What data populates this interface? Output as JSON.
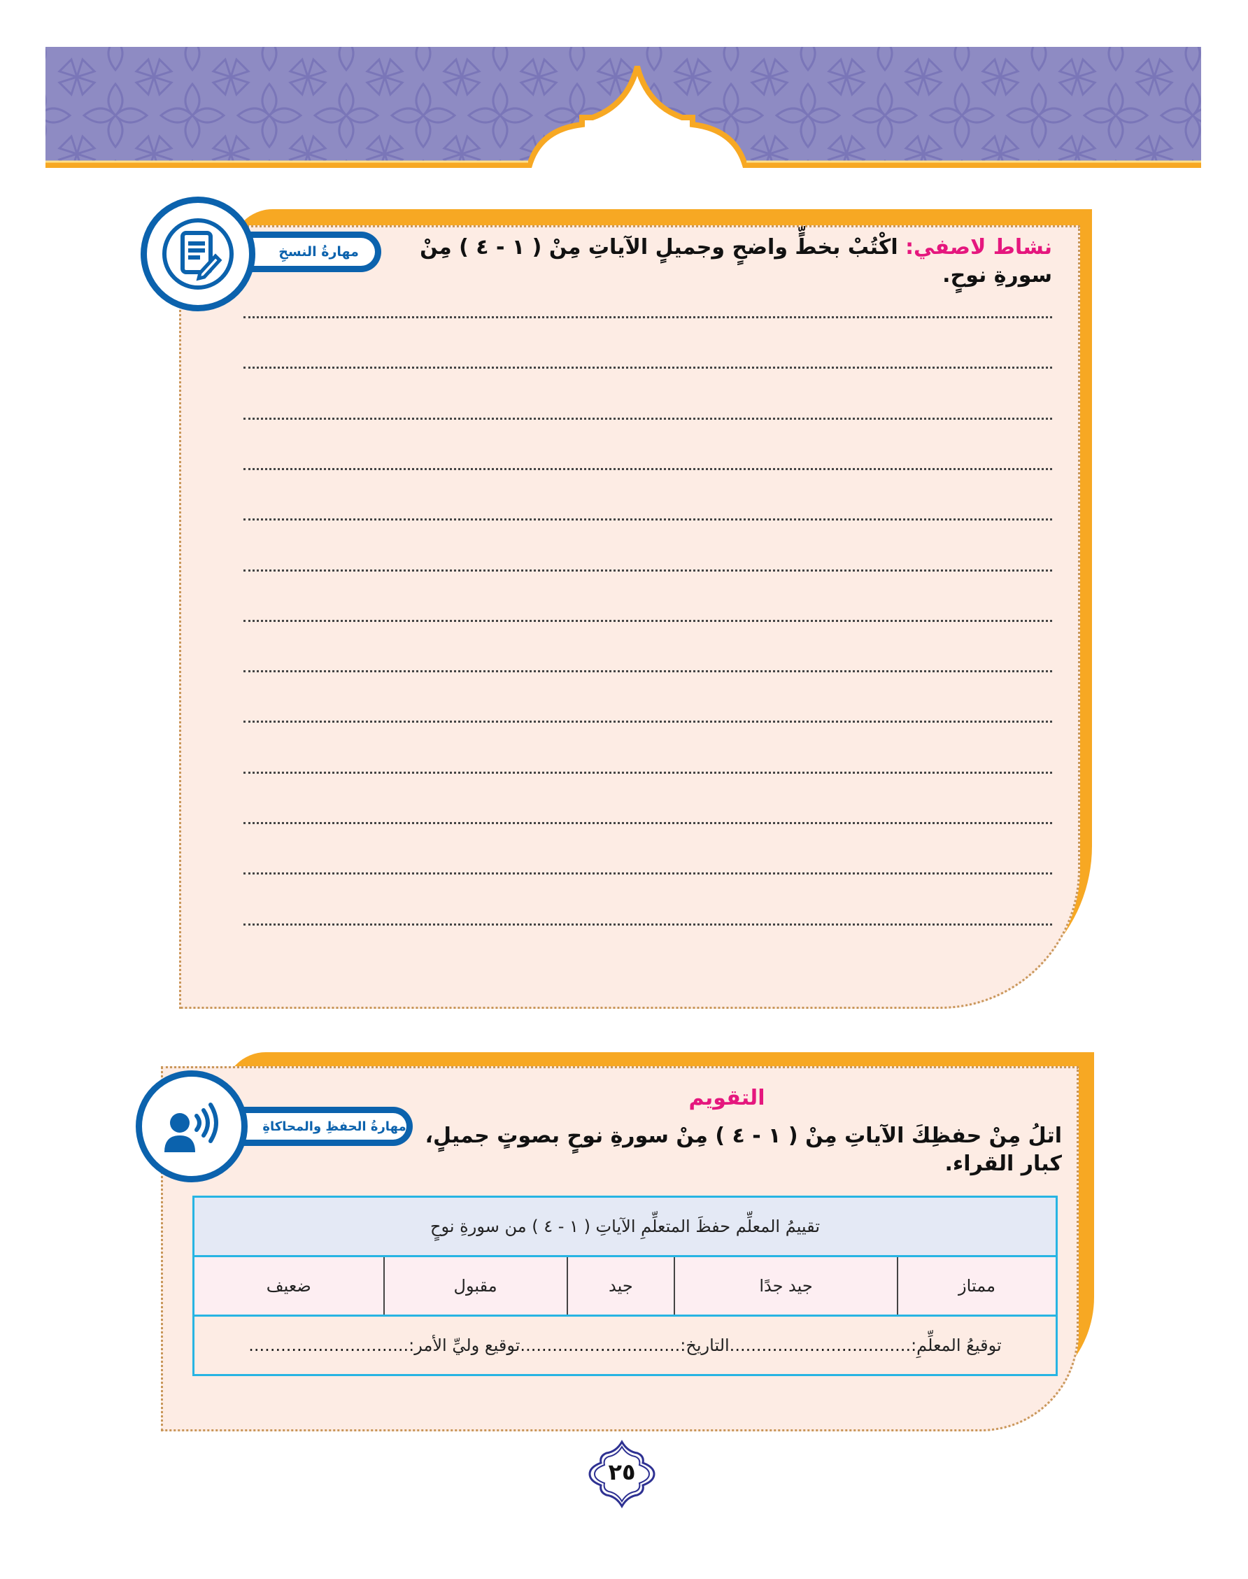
{
  "colors": {
    "banner": "#8e8bc3",
    "gold": "#f7a823",
    "pale": "#fdece4",
    "skill_blue": "#0b62ad",
    "pink": "#e5177e",
    "table_border": "#27b4e3",
    "table_head": "#e4e9f5",
    "table_rating": "#fdeef2"
  },
  "activity1": {
    "skill_label": "مهارةُ النسخِ",
    "skill_icon": "document-pen-icon",
    "title_label": "نشاط لاصفي:",
    "instruction": " اكْتُبْ بخطٍّ واضحٍ وجميلٍ الآياتِ مِنْ ( ١ - ٤ ) مِنْ سورةِ نوحٍ.",
    "writing_lines": 13
  },
  "activity2": {
    "skill_label": "مهارةُ الحفظِ والمحاكاةِ",
    "skill_icon": "speaking-person-icon",
    "heading": "التقويم",
    "instruction": "اتلُ مِنْ حفظِكَ الآياتِ مِنْ ( ١ - ٤ ) مِنْ سورةِ نوحٍ بصوتٍ جميلٍ، كبار القراء.",
    "table": {
      "header": "تقييمُ المعلِّم حفظَ المتعلِّمِ الآياتِ ( ١ - ٤ ) من سورةِ نوحٍ",
      "ratings": [
        "ممتاز",
        "جيد جدًا",
        "جيد",
        "مقبول",
        "ضعيف"
      ],
      "signature_row": "توقيعُ المعلِّمِ:..................................التاريخ:..............................توقيع وليِّ الأمر:.............................."
    }
  },
  "page_number": "٢٥"
}
